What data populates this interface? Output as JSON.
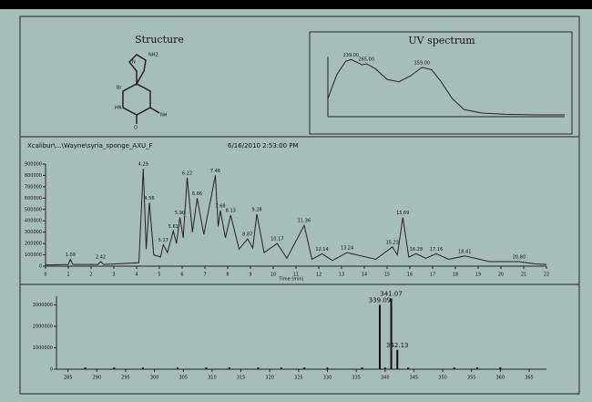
{
  "structure": {
    "title": "Structure",
    "atoms": [
      "NH2",
      "N",
      "HN",
      "Br",
      "O",
      "NH"
    ]
  },
  "chart_data": [
    {
      "type": "line",
      "title": "UV spectrum",
      "x": [
        200,
        215,
        230,
        239,
        250,
        258,
        265,
        280,
        300,
        320,
        340,
        359,
        375,
        390,
        410,
        430,
        460,
        500,
        550,
        600
      ],
      "values": [
        0.3,
        0.7,
        0.92,
        0.95,
        0.9,
        0.86,
        0.88,
        0.8,
        0.62,
        0.58,
        0.68,
        0.82,
        0.78,
        0.6,
        0.3,
        0.12,
        0.06,
        0.04,
        0.03,
        0.03
      ],
      "xlim": [
        200,
        600
      ],
      "ylim": [
        0,
        1
      ],
      "color": "#222",
      "annotations": [
        {
          "x": 239,
          "y": 0.95,
          "text": "239.00"
        },
        {
          "x": 265,
          "y": 0.88,
          "text": "265.00"
        },
        {
          "x": 359,
          "y": 0.82,
          "text": "359.00"
        }
      ]
    },
    {
      "type": "line",
      "header": [
        "Xcalibur\\...\\Wayne\\syria_sponge_AXU_F",
        "6/16/2010 2:53:00 PM"
      ],
      "x_label": "Time (min)",
      "x": [
        0,
        1.0,
        1.09,
        1.2,
        2.3,
        2.42,
        2.55,
        4.1,
        4.29,
        4.42,
        4.56,
        4.75,
        5.05,
        5.17,
        5.35,
        5.61,
        5.75,
        5.9,
        6.05,
        6.22,
        6.45,
        6.66,
        6.95,
        7.46,
        7.58,
        7.68,
        7.9,
        8.13,
        8.5,
        8.87,
        9.1,
        9.28,
        9.6,
        10.17,
        10.6,
        11.36,
        11.7,
        12.14,
        12.6,
        13.24,
        14.5,
        15.23,
        15.45,
        15.69,
        15.95,
        16.28,
        16.7,
        17.16,
        17.7,
        18.41,
        19.5,
        20.8,
        21.5,
        22
      ],
      "values": [
        10000,
        15000,
        60000,
        15000,
        15000,
        40000,
        15000,
        30000,
        860000,
        150000,
        560000,
        100000,
        80000,
        190000,
        120000,
        310000,
        200000,
        430000,
        250000,
        780000,
        300000,
        600000,
        280000,
        800000,
        350000,
        490000,
        250000,
        450000,
        150000,
        240000,
        160000,
        460000,
        120000,
        200000,
        70000,
        360000,
        60000,
        110000,
        50000,
        120000,
        60000,
        170000,
        100000,
        430000,
        80000,
        110000,
        70000,
        110000,
        60000,
        90000,
        40000,
        40000,
        20000,
        15000
      ],
      "xlim": [
        0,
        22
      ],
      "ylim": [
        0,
        900000
      ],
      "color": "#222",
      "xticks": [
        0,
        1,
        2,
        3,
        4,
        5,
        6,
        7,
        8,
        9,
        10,
        11,
        12,
        13,
        14,
        15,
        16,
        17,
        18,
        19,
        20,
        21,
        22
      ],
      "yticks": [
        0,
        100000,
        200000,
        300000,
        400000,
        500000,
        600000,
        700000,
        800000,
        900000
      ],
      "annotations": [
        {
          "x": 1.09,
          "y": 60000,
          "text": "1.09"
        },
        {
          "x": 2.42,
          "y": 40000,
          "text": "2.42"
        },
        {
          "x": 4.29,
          "y": 860000,
          "text": "4.29"
        },
        {
          "x": 4.56,
          "y": 560000,
          "text": "4.56"
        },
        {
          "x": 5.17,
          "y": 190000,
          "text": "5.17"
        },
        {
          "x": 5.61,
          "y": 310000,
          "text": "5.61"
        },
        {
          "x": 5.9,
          "y": 430000,
          "text": "5.90"
        },
        {
          "x": 6.22,
          "y": 780000,
          "text": "6.22"
        },
        {
          "x": 6.66,
          "y": 600000,
          "text": "6.66"
        },
        {
          "x": 7.46,
          "y": 800000,
          "text": "7.46"
        },
        {
          "x": 7.68,
          "y": 490000,
          "text": "7.68"
        },
        {
          "x": 8.13,
          "y": 450000,
          "text": "8.13"
        },
        {
          "x": 8.87,
          "y": 240000,
          "text": "8.87"
        },
        {
          "x": 9.28,
          "y": 460000,
          "text": "9.28"
        },
        {
          "x": 10.17,
          "y": 200000,
          "text": "10.17"
        },
        {
          "x": 11.36,
          "y": 360000,
          "text": "11.36"
        },
        {
          "x": 12.14,
          "y": 110000,
          "text": "12.14"
        },
        {
          "x": 13.24,
          "y": 120000,
          "text": "13.24"
        },
        {
          "x": 15.23,
          "y": 170000,
          "text": "15.23"
        },
        {
          "x": 15.69,
          "y": 430000,
          "text": "15.69"
        },
        {
          "x": 16.28,
          "y": 110000,
          "text": "16.28"
        },
        {
          "x": 17.16,
          "y": 110000,
          "text": "17.16"
        },
        {
          "x": 18.41,
          "y": 90000,
          "text": "18.41"
        },
        {
          "x": 20.8,
          "y": 40000,
          "text": "20.80"
        }
      ]
    },
    {
      "type": "bar",
      "x": [
        288,
        293,
        298,
        304,
        309,
        313,
        318,
        322,
        326,
        330,
        336,
        339.09,
        340,
        341.07,
        342.13,
        344,
        352,
        356,
        360
      ],
      "values": [
        80000,
        80000,
        80000,
        80000,
        80000,
        80000,
        80000,
        80000,
        80000,
        80000,
        80000,
        3000000,
        80000,
        3300000,
        900000,
        80000,
        80000,
        80000,
        80000
      ],
      "xlim": [
        283,
        368
      ],
      "ylim": [
        0,
        3400000
      ],
      "color": "#111",
      "xticks": [
        285,
        290,
        295,
        300,
        305,
        310,
        315,
        320,
        325,
        330,
        335,
        340,
        345,
        350,
        355,
        360,
        365
      ],
      "yticks": [
        0,
        1000000,
        2000000,
        3000000
      ],
      "annotations": [
        {
          "x": 339.09,
          "y": 3000000,
          "text": "339.09"
        },
        {
          "x": 341.07,
          "y": 3300000,
          "text": "341.07"
        },
        {
          "x": 342.13,
          "y": 900000,
          "text": "342.13"
        }
      ]
    }
  ]
}
